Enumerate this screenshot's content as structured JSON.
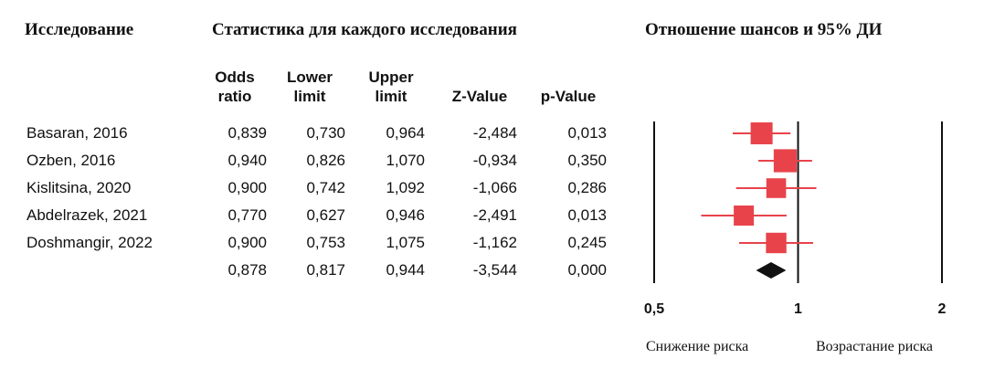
{
  "headers": {
    "study": "Исследование",
    "stats": "Статистика для каждого исследования",
    "ratio": "Отношение шансов и 95% ДИ"
  },
  "columns": [
    {
      "line1": "Odds",
      "line2": "ratio"
    },
    {
      "line1": "Lower",
      "line2": "limit"
    },
    {
      "line1": "Upper",
      "line2": "limit"
    },
    {
      "line1": "Z-Value",
      "line2": ""
    },
    {
      "line1": "p-Value",
      "line2": ""
    }
  ],
  "rows": [
    {
      "study": "Basaran, 2016",
      "odds_ratio": "0,839",
      "lower": "0,730",
      "upper": "0,964",
      "z": "-2,484",
      "p": "0,013"
    },
    {
      "study": "Ozben, 2016",
      "odds_ratio": "0,940",
      "lower": "0,826",
      "upper": "1,070",
      "z": "-0,934",
      "p": "0,350"
    },
    {
      "study": "Kislitsina, 2020",
      "odds_ratio": "0,900",
      "lower": "0,742",
      "upper": "1,092",
      "z": "-1,066",
      "p": "0,286"
    },
    {
      "study": "Abdelrazek, 2021",
      "odds_ratio": "0,770",
      "lower": "0,627",
      "upper": "0,946",
      "z": "-2,491",
      "p": "0,013"
    },
    {
      "study": "Doshmangir, 2022",
      "odds_ratio": "0,900",
      "lower": "0,753",
      "upper": "1,075",
      "z": "-1,162",
      "p": "0,245"
    },
    {
      "study": "",
      "odds_ratio": "0,878",
      "lower": "0,817",
      "upper": "0,944",
      "z": "-3,544",
      "p": "0,000"
    }
  ],
  "footer": {
    "left": "Снижение риска",
    "right": "Возрастание риска"
  },
  "chart_data": {
    "type": "forest",
    "scale": "log",
    "xlim": [
      0.5,
      2
    ],
    "reference_line": 1,
    "x_ticks": [
      "0,5",
      "1",
      "2"
    ],
    "marker_color": "#e8434b",
    "summary_color": "#111111",
    "studies": [
      {
        "label": "Basaran, 2016",
        "or": 0.839,
        "lower": 0.73,
        "upper": 0.964,
        "weight": 1.0
      },
      {
        "label": "Ozben, 2016",
        "or": 0.94,
        "lower": 0.826,
        "upper": 1.07,
        "weight": 1.15
      },
      {
        "label": "Kislitsina, 2020",
        "or": 0.9,
        "lower": 0.742,
        "upper": 1.092,
        "weight": 0.7
      },
      {
        "label": "Abdelrazek, 2021",
        "or": 0.77,
        "lower": 0.627,
        "upper": 0.946,
        "weight": 0.75
      },
      {
        "label": "Doshmangir, 2022",
        "or": 0.9,
        "lower": 0.753,
        "upper": 1.075,
        "weight": 0.8
      }
    ],
    "summary": {
      "or": 0.878,
      "lower": 0.817,
      "upper": 0.944
    }
  }
}
